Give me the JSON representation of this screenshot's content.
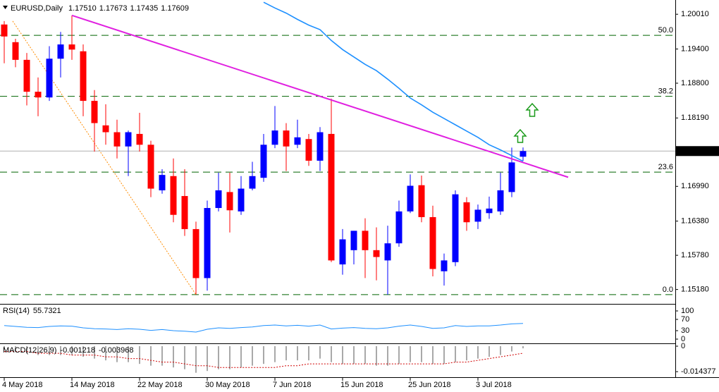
{
  "chart_data": [
    {
      "type": "candlestick",
      "symbol": "EURUSD,Daily",
      "last_bar_labels": [
        "1.17510",
        "1.17673",
        "1.17435",
        "1.17609"
      ],
      "open": [
        1.1983,
        1.1952,
        1.1921,
        1.1865,
        1.1855,
        1.1923,
        1.1948,
        1.1936,
        1.1849,
        1.1806,
        1.1794,
        1.1769,
        1.1791,
        1.1772,
        1.1692,
        1.1717,
        1.1682,
        1.1624,
        1.1538,
        1.1661,
        1.1689,
        1.1655,
        1.1695,
        1.1714,
        1.1772,
        1.1797,
        1.1772,
        1.1782,
        1.1744,
        1.1791,
        1.1562,
        1.1587,
        1.1621,
        1.1587,
        1.1569,
        1.1599,
        1.1655,
        1.1701,
        1.1645,
        1.155,
        1.1566,
        1.1671,
        1.1637,
        1.1652,
        1.1655,
        1.1689,
        1.1751
      ],
      "high": [
        1.1989,
        1.1958,
        1.1933,
        1.189,
        1.1945,
        1.197,
        1.1999,
        1.1948,
        1.1868,
        1.1843,
        1.1816,
        1.1797,
        1.1828,
        1.1779,
        1.1729,
        1.1748,
        1.1729,
        1.1637,
        1.1674,
        1.1723,
        1.1723,
        1.1717,
        1.1742,
        1.1791,
        1.184,
        1.181,
        1.1816,
        1.1791,
        1.1803,
        1.1853,
        1.1624,
        1.1621,
        1.1643,
        1.1627,
        1.163,
        1.1674,
        1.172,
        1.1718,
        1.1665,
        1.1581,
        1.1692,
        1.168,
        1.1667,
        1.1681,
        1.1723,
        1.1767,
        1.17673
      ],
      "low": [
        1.1915,
        1.1908,
        1.1841,
        1.1822,
        1.1849,
        1.189,
        1.1921,
        1.1822,
        1.176,
        1.1772,
        1.1748,
        1.1717,
        1.176,
        1.168,
        1.1686,
        1.1636,
        1.1612,
        1.1509,
        1.1516,
        1.1655,
        1.1618,
        1.1649,
        1.1692,
        1.1707,
        1.1766,
        1.1726,
        1.1766,
        1.1735,
        1.1726,
        1.1566,
        1.1544,
        1.1562,
        1.1538,
        1.1534,
        1.1509,
        1.1593,
        1.1652,
        1.1636,
        1.1541,
        1.1525,
        1.1559,
        1.1621,
        1.1624,
        1.1642,
        1.1649,
        1.168,
        1.17435
      ],
      "close": [
        1.1962,
        1.1921,
        1.1865,
        1.1855,
        1.1923,
        1.1948,
        1.1939,
        1.1849,
        1.181,
        1.1794,
        1.1769,
        1.1794,
        1.1772,
        1.1695,
        1.1719,
        1.1649,
        1.1624,
        1.1538,
        1.1661,
        1.1692,
        1.1657,
        1.1695,
        1.1717,
        1.1772,
        1.1797,
        1.1769,
        1.1785,
        1.1744,
        1.1794,
        1.1569,
        1.1606,
        1.1621,
        1.1587,
        1.1575,
        1.1599,
        1.1655,
        1.17,
        1.1645,
        1.1554,
        1.1569,
        1.1685,
        1.1636,
        1.1658,
        1.166,
        1.1692,
        1.1741,
        1.17609
      ],
      "up_color": "#0000ff",
      "down_color": "#ff0000",
      "ma": {
        "color": "#1e90ff",
        "values": [
          null,
          null,
          null,
          null,
          null,
          null,
          null,
          null,
          null,
          null,
          null,
          null,
          null,
          null,
          null,
          null,
          null,
          null,
          null,
          null,
          null,
          null,
          null,
          1.2022,
          1.2012,
          1.2003,
          1.1992,
          1.1982,
          1.1974,
          1.1955,
          1.1939,
          1.1926,
          1.1913,
          1.1902,
          1.1887,
          1.1871,
          1.1854,
          1.1842,
          1.1829,
          1.1818,
          1.1807,
          1.1796,
          1.1785,
          1.1772,
          1.1763,
          1.1753,
          1.1743
        ]
      },
      "trendline": {
        "color": "#e020e0",
        "x": [
          6,
          50
        ],
        "values": [
          1.1999,
          1.1715
        ]
      },
      "fib_anchor": {
        "color": "#ff8c00",
        "x": [
          0.75,
          17
        ],
        "values": [
          1.1989,
          1.1509
        ]
      },
      "fib_color": "#006400",
      "fib_levels": [
        {
          "value": 1.1964,
          "label": "50.0"
        },
        {
          "value": 1.1857,
          "label": "38.2"
        },
        {
          "value": 1.1724,
          "label": "23.6"
        },
        {
          "value": 1.1509,
          "label": "0.0"
        }
      ],
      "xlim": [
        -0.375,
        59.5
      ],
      "ylim": [
        1.1494,
        1.2026
      ],
      "yticks": [
        {
          "value": 1.2001,
          "label": "1.20010"
        },
        {
          "value": 1.194,
          "label": "1.19400"
        },
        {
          "value": 1.188,
          "label": "1.18800"
        },
        {
          "value": 1.1819,
          "label": "1.18190"
        },
        {
          "value": 1.1699,
          "label": "1.16990"
        },
        {
          "value": 1.1638,
          "label": "1.16380"
        },
        {
          "value": 1.1578,
          "label": "1.15780"
        },
        {
          "value": 1.1518,
          "label": "1.15180"
        }
      ],
      "xticks": [
        {
          "value": 0,
          "label": "4 May 2018"
        },
        {
          "value": 6,
          "label": "14 May 2018"
        },
        {
          "value": 12,
          "label": "22 May 2018"
        },
        {
          "value": 18,
          "label": "30 May 2018"
        },
        {
          "value": 24,
          "label": "7 Jun 2018"
        },
        {
          "value": 30,
          "label": "15 Jun 2018"
        },
        {
          "value": 36,
          "label": "25 Jun 2018"
        },
        {
          "value": 42,
          "label": "3 Jul 2018"
        }
      ],
      "grid": false
    },
    {
      "type": "line",
      "title": "RSI(14)",
      "color": "#1e90ff",
      "values": [
        48,
        45,
        42,
        41,
        45,
        47,
        46,
        40,
        37,
        36,
        34,
        37,
        35,
        31,
        34,
        30,
        28,
        25,
        35,
        40,
        38,
        41,
        43,
        48,
        50,
        47,
        49,
        46,
        50,
        36,
        39,
        41,
        38,
        37,
        40,
        46,
        50,
        45,
        38,
        40,
        48,
        45,
        47,
        47,
        50,
        54,
        55.7321
      ],
      "xlim": [
        -0.375,
        59.5
      ],
      "ylim": [
        -12.5,
        122.5
      ],
      "yticks": [
        100,
        70,
        30,
        0
      ]
    },
    {
      "type": "bar",
      "title": "MACD(12,26,9)",
      "color": "#a9a9a9",
      "signal_color": "#d00000",
      "values": [
        -0.002,
        -0.003,
        -0.004,
        -0.005,
        -0.005,
        -0.005,
        -0.005,
        -0.006,
        -0.007,
        -0.008,
        -0.009,
        -0.009,
        -0.01,
        -0.011,
        -0.011,
        -0.012,
        -0.013,
        -0.015,
        -0.014,
        -0.013,
        -0.013,
        -0.012,
        -0.011,
        -0.01,
        -0.009,
        -0.008,
        -0.008,
        -0.008,
        -0.007,
        -0.009,
        -0.01,
        -0.01,
        -0.01,
        -0.011,
        -0.011,
        -0.01,
        -0.009,
        -0.009,
        -0.01,
        -0.01,
        -0.009,
        -0.008,
        -0.007,
        -0.006,
        -0.005,
        -0.003,
        -0.001218
      ],
      "signal": [
        -0.003,
        -0.003,
        -0.003,
        -0.004,
        -0.004,
        -0.004,
        -0.005,
        -0.005,
        -0.005,
        -0.006,
        -0.006,
        -0.007,
        -0.007,
        -0.008,
        -0.009,
        -0.009,
        -0.01,
        -0.011,
        -0.011,
        -0.012,
        -0.012,
        -0.012,
        -0.012,
        -0.012,
        -0.012,
        -0.011,
        -0.011,
        -0.01,
        -0.01,
        -0.01,
        -0.01,
        -0.01,
        -0.01,
        -0.01,
        -0.01,
        -0.01,
        -0.01,
        -0.01,
        -0.01,
        -0.01,
        -0.009,
        -0.009,
        -0.008,
        -0.007,
        -0.006,
        -0.005,
        -0.003968
      ],
      "xlim": [
        -0.375,
        59.5
      ],
      "ylim": [
        -0.0175,
        0.0012
      ],
      "yticks": [
        0,
        -0.014377
      ]
    }
  ]
}
